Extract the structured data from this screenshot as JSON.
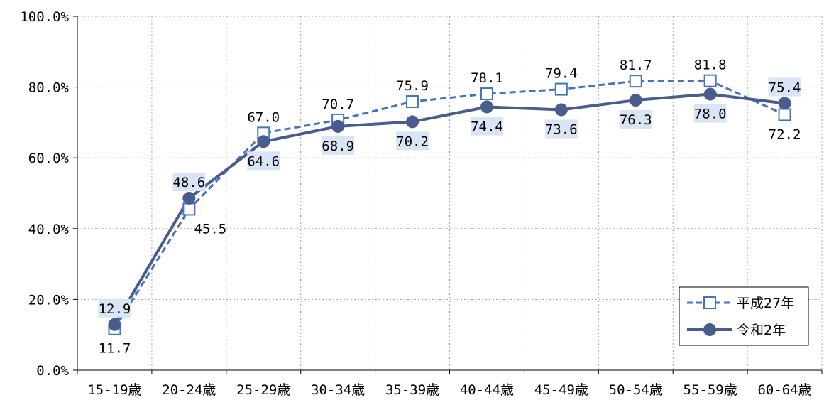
{
  "chart_data": {
    "type": "line",
    "categories": [
      "15-19歳",
      "20-24歳",
      "25-29歳",
      "30-34歳",
      "35-39歳",
      "40-44歳",
      "45-49歳",
      "50-54歳",
      "55-59歳",
      "60-64歳"
    ],
    "series": [
      {
        "name": "平成27年",
        "values": [
          11.7,
          45.5,
          67.0,
          70.7,
          75.9,
          78.1,
          79.4,
          81.7,
          81.8,
          72.2
        ],
        "labels": [
          "11.7",
          "45.5",
          "67.0",
          "70.7",
          "75.9",
          "78.1",
          "79.4",
          "81.7",
          "81.8",
          "72.2"
        ],
        "style": "dashed",
        "marker": "open-square",
        "color": "#4472C4"
      },
      {
        "name": "令和2年",
        "values": [
          12.9,
          48.6,
          64.6,
          68.9,
          70.2,
          74.4,
          73.6,
          76.3,
          78.0,
          75.4
        ],
        "labels": [
          "12.9",
          "48.6",
          "64.6",
          "68.9",
          "70.2",
          "74.4",
          "73.6",
          "76.3",
          "78.0",
          "75.4"
        ],
        "style": "solid",
        "marker": "filled-circle",
        "color": "#4A5C8C",
        "label_background": "#D9E4F5"
      }
    ],
    "y_ticks": [
      "0.0%",
      "20.0%",
      "40.0%",
      "60.0%",
      "80.0%",
      "100.0%"
    ],
    "ylim": [
      0,
      100
    ],
    "grid": true,
    "legend_position": "bottom-right"
  }
}
